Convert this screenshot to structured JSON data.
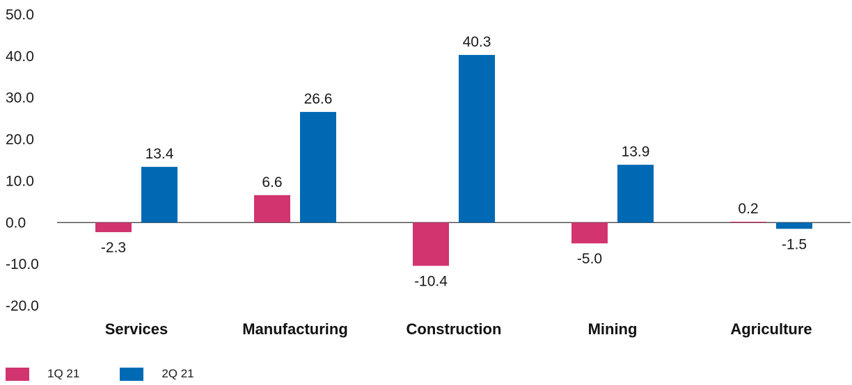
{
  "chart_data": {
    "type": "bar",
    "categories": [
      "Services",
      "Manufacturing",
      "Construction",
      "Mining",
      "Agriculture"
    ],
    "series": [
      {
        "name": "1Q 21",
        "color": "#d1346f",
        "values": [
          -2.3,
          6.6,
          -10.4,
          -5.0,
          0.2
        ],
        "labels": [
          "-2.3",
          "6.6",
          "-10.4",
          "-5.0",
          "0.2"
        ]
      },
      {
        "name": "2Q 21",
        "color": "#0069b4",
        "values": [
          13.4,
          26.6,
          40.3,
          13.9,
          -1.5
        ],
        "labels": [
          "13.4",
          "26.6",
          "40.3",
          "13.9",
          "-1.5"
        ]
      }
    ],
    "yticks": [
      "50.0",
      "40.0",
      "30.0",
      "20.0",
      "10.0",
      "0.0",
      "-10.0",
      "-20.0"
    ],
    "ylim": [
      -20,
      50
    ],
    "legend_position": "bottom-left",
    "grid": false
  }
}
